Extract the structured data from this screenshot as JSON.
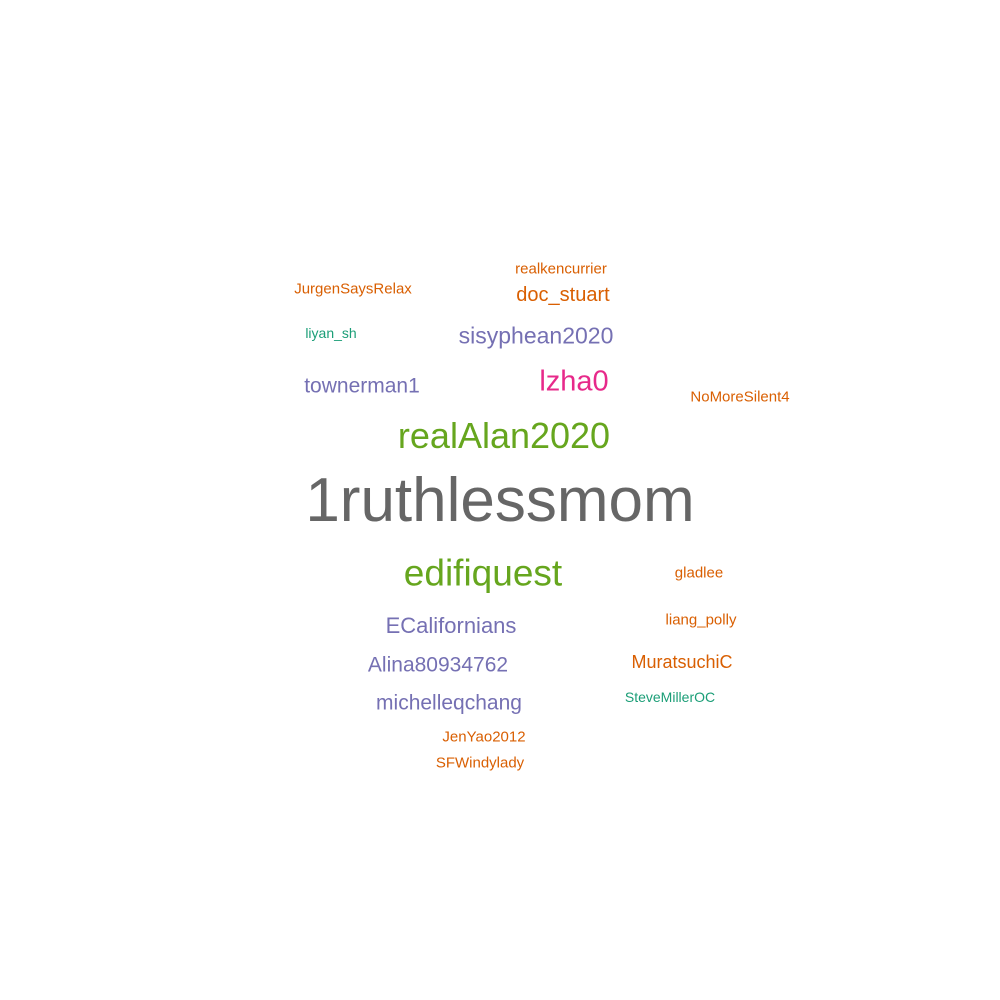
{
  "colors": {
    "background": "#ffffff",
    "gray": "#666666",
    "green": "#66a61e",
    "magenta": "#e7298a",
    "purple": "#7570b3",
    "orange": "#d95f02",
    "teal": "#1b9e77"
  },
  "words": [
    {
      "text": "1ruthlessmom",
      "color": "#666666"
    },
    {
      "text": "realAlan2020",
      "color": "#66a61e"
    },
    {
      "text": "edifiquest",
      "color": "#66a61e"
    },
    {
      "text": "lzha0",
      "color": "#e7298a"
    },
    {
      "text": "sisyphean2020",
      "color": "#7570b3"
    },
    {
      "text": "townerman1",
      "color": "#7570b3"
    },
    {
      "text": "ECalifornians",
      "color": "#7570b3"
    },
    {
      "text": "Alina80934762",
      "color": "#7570b3"
    },
    {
      "text": "michelleqchang",
      "color": "#7570b3"
    },
    {
      "text": "doc_stuart",
      "color": "#d95f02"
    },
    {
      "text": "MuratsuchiC",
      "color": "#d95f02"
    },
    {
      "text": "realkencurrier",
      "color": "#d95f02"
    },
    {
      "text": "JurgenSaysRelax",
      "color": "#d95f02"
    },
    {
      "text": "NoMoreSilent4",
      "color": "#d95f02"
    },
    {
      "text": "gladlee",
      "color": "#d95f02"
    },
    {
      "text": "liang_polly",
      "color": "#d95f02"
    },
    {
      "text": "JenYao2012",
      "color": "#d95f02"
    },
    {
      "text": "SFWindylady",
      "color": "#d95f02"
    },
    {
      "text": "liyan_sh",
      "color": "#1b9e77"
    },
    {
      "text": "SteveMillerOC",
      "color": "#1b9e77"
    }
  ]
}
